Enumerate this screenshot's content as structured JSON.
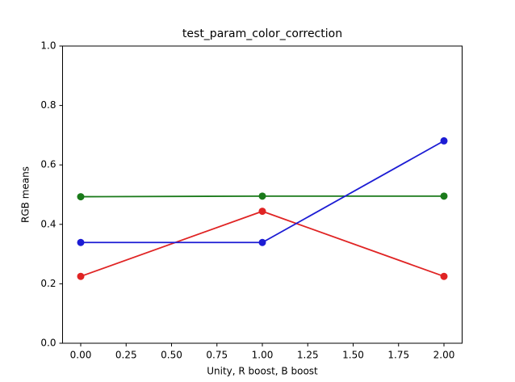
{
  "chart_data": {
    "type": "line",
    "title": "test_param_color_correction",
    "xlabel": "Unity, R boost, B boost",
    "ylabel": "RGB means",
    "x": [
      0,
      1,
      2
    ],
    "series": [
      {
        "color": "#e02424",
        "values": [
          0.225,
          0.444,
          0.225
        ]
      },
      {
        "color": "#1a7a1a",
        "values": [
          0.493,
          0.495,
          0.495
        ]
      },
      {
        "color": "#1c1cd4",
        "values": [
          0.339,
          0.339,
          0.681
        ]
      }
    ],
    "xlim": [
      -0.1,
      2.1
    ],
    "xticks": [
      {
        "value": 0,
        "label": "0.00"
      },
      {
        "value": 0.25,
        "label": "0.25"
      },
      {
        "value": 0.5,
        "label": "0.50"
      },
      {
        "value": 0.75,
        "label": "0.75"
      },
      {
        "value": 1,
        "label": "1.00"
      },
      {
        "value": 1.25,
        "label": "1.25"
      },
      {
        "value": 1.5,
        "label": "1.50"
      },
      {
        "value": 1.75,
        "label": "1.75"
      },
      {
        "value": 2,
        "label": "2.00"
      }
    ],
    "ylim": [
      0,
      1
    ],
    "yticks": [
      {
        "value": 0,
        "label": "0.0"
      },
      {
        "value": 0.2,
        "label": "0.2"
      },
      {
        "value": 0.4,
        "label": "0.4"
      },
      {
        "value": 0.6,
        "label": "0.6"
      },
      {
        "value": 0.8,
        "label": "0.8"
      },
      {
        "value": 1,
        "label": "1.0"
      }
    ],
    "grid": false
  }
}
